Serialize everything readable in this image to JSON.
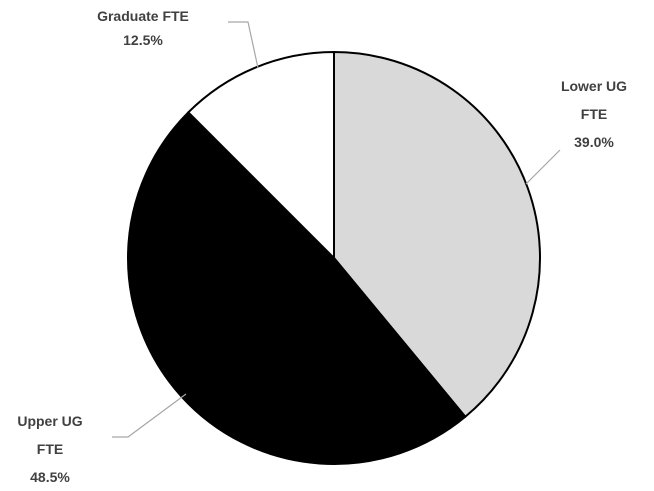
{
  "chart_data": {
    "type": "pie",
    "categories": [
      "Lower UG FTE",
      "Upper UG FTE",
      "Graduate FTE"
    ],
    "values": [
      39.0,
      48.5,
      12.5
    ],
    "value_labels": [
      "39.0%",
      "48.5%",
      "12.5%"
    ],
    "colors": [
      "#d9d9d9",
      "#000000",
      "#ffffff"
    ]
  }
}
